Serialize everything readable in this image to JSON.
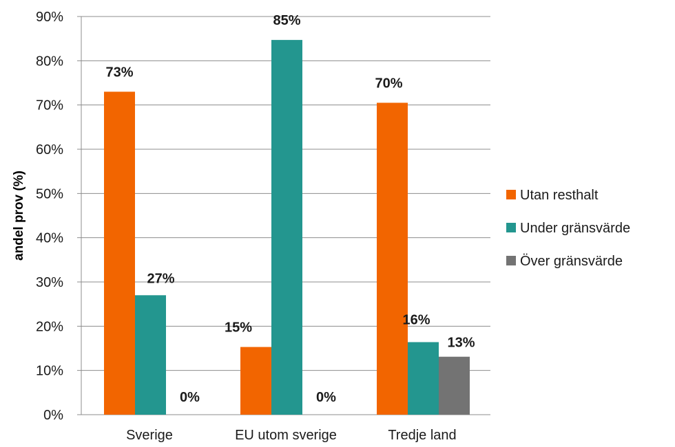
{
  "chart_data": {
    "type": "bar",
    "ylabel": "andel prov (%)",
    "ylim": [
      0,
      90
    ],
    "ytick_step": 10,
    "ytick_suffix": "%",
    "categories": [
      "Sverige",
      "EU utom sverige",
      "Tredje land"
    ],
    "series": [
      {
        "name": "Utan resthalt",
        "color": "#f26500",
        "values": [
          73,
          15.3,
          70.5
        ],
        "labels": [
          "73%",
          "15%",
          "70%"
        ]
      },
      {
        "name": "Under gränsvärde",
        "color": "#23968f",
        "values": [
          27,
          84.7,
          16.4
        ],
        "labels": [
          "27%",
          "85%",
          "16%"
        ]
      },
      {
        "name": "Över gränsvärde",
        "color": "#737373",
        "values": [
          0,
          0,
          13.1
        ],
        "labels": [
          "0%",
          "0%",
          "13%"
        ]
      }
    ],
    "grid": true,
    "legend": "right"
  }
}
